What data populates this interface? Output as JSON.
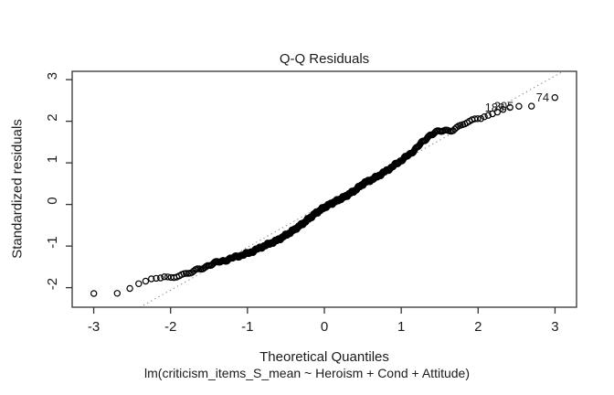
{
  "chart_data": {
    "type": "scatter",
    "subtype": "qq-plot",
    "title": "Q-Q Residuals",
    "xlabel": "Theoretical Quantiles",
    "ylabel": "Standardized residuals",
    "subtitle": "lm(criticism_items_S_mean ~ Heroism + Cond + Attitude)",
    "x_ticks": [
      -3,
      -2,
      -1,
      0,
      1,
      2,
      3
    ],
    "y_ticks": [
      -2,
      -1,
      0,
      1,
      2,
      3
    ],
    "xlim": [
      -3.28,
      3.28
    ],
    "ylim": [
      -2.47,
      3.2
    ],
    "grid": false,
    "legend": "none",
    "n_points": 460,
    "point_style": {
      "shape": "open-circle",
      "color": "#000000"
    },
    "reference_line": {
      "style": "dotted",
      "slope": 1.03,
      "intercept": 0.0,
      "color": "#8c8c8c"
    },
    "qq_curve_anchors": [
      [
        -3.0,
        -2.14
      ],
      [
        -2.7,
        -2.14
      ],
      [
        -2.53,
        -2.02
      ],
      [
        -2.42,
        -1.91
      ],
      [
        -2.32,
        -1.84
      ],
      [
        -2.26,
        -1.79
      ],
      [
        -2.1,
        -1.76
      ],
      [
        -1.9,
        -1.71
      ],
      [
        -1.72,
        -1.63
      ],
      [
        -1.55,
        -1.5
      ],
      [
        -1.45,
        -1.42
      ],
      [
        -1.32,
        -1.36
      ],
      [
        -1.15,
        -1.26
      ],
      [
        -0.97,
        -1.16
      ],
      [
        -0.8,
        -1.01
      ],
      [
        -0.62,
        -0.87
      ],
      [
        -0.45,
        -0.68
      ],
      [
        -0.28,
        -0.46
      ],
      [
        -0.12,
        -0.22
      ],
      [
        0.0,
        -0.07
      ],
      [
        0.12,
        0.05
      ],
      [
        0.25,
        0.17
      ],
      [
        0.4,
        0.34
      ],
      [
        0.52,
        0.52
      ],
      [
        0.62,
        0.6
      ],
      [
        0.75,
        0.74
      ],
      [
        0.88,
        0.9
      ],
      [
        1.0,
        1.06
      ],
      [
        1.12,
        1.22
      ],
      [
        1.25,
        1.45
      ],
      [
        1.38,
        1.68
      ],
      [
        1.5,
        1.76
      ],
      [
        1.68,
        1.8
      ],
      [
        1.8,
        1.92
      ],
      [
        1.95,
        2.03
      ],
      [
        2.1,
        2.12
      ],
      [
        2.25,
        2.22
      ],
      [
        2.32,
        2.28
      ],
      [
        2.41,
        2.33
      ],
      [
        2.53,
        2.36
      ],
      [
        2.69,
        2.36
      ],
      [
        3.0,
        2.57
      ]
    ],
    "labeled_points": [
      {
        "label": "74",
        "x": 2.99,
        "y": 2.57
      },
      {
        "label": "205",
        "x": 2.53,
        "y": 2.36
      },
      {
        "label": "189",
        "x": 2.41,
        "y": 2.33
      }
    ],
    "colors": {
      "points": "#000000",
      "reference_line": "#8c8c8c",
      "axis": "#333333",
      "text": "#1a1a1a",
      "background": "#ffffff"
    }
  }
}
